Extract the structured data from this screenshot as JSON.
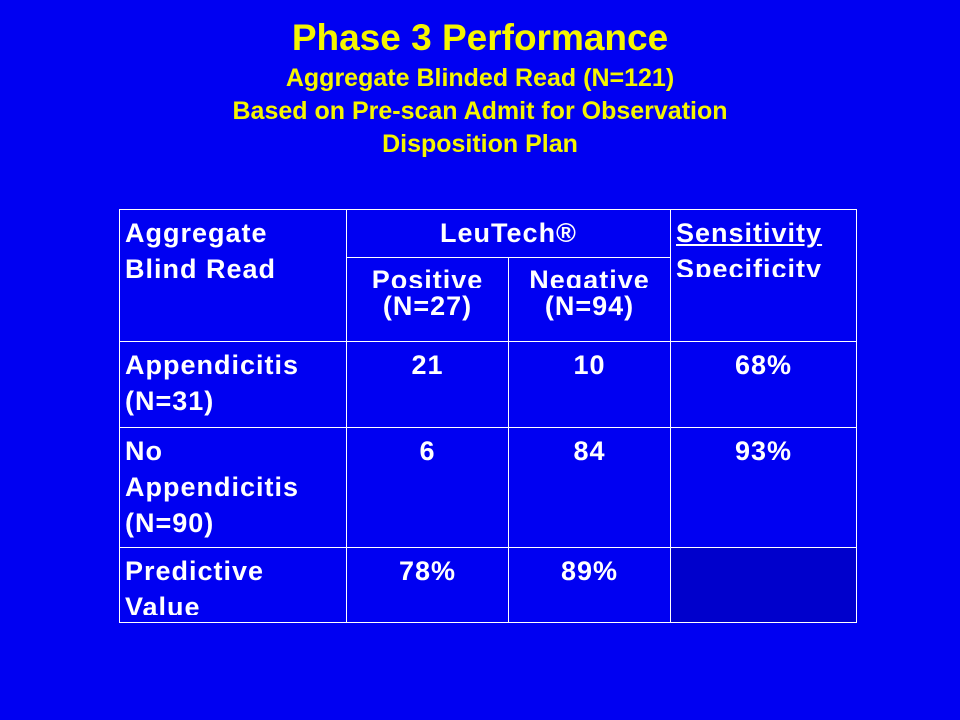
{
  "slide": {
    "title": "Phase 3  Performance",
    "subtitle_lines": [
      "Aggregate Blinded Read (N=121)",
      "Based on Pre-scan Admit for Observation",
      "Disposition Plan"
    ]
  },
  "table": {
    "corner": [
      "Aggregate",
      "Blind Read"
    ],
    "group_header": "LeuTech®",
    "metric_header": [
      "Sensitivity",
      "Specificity"
    ],
    "columns": [
      {
        "label": "Positive",
        "n": "(N=27)"
      },
      {
        "label": "Negative",
        "n": "(N=94)"
      }
    ],
    "rows": [
      {
        "label_lines": [
          "Appendicitis",
          "(N=31)"
        ],
        "positive": "21",
        "negative": "10",
        "metric": "68%"
      },
      {
        "label_lines": [
          "No",
          "Appendicitis",
          "(N=90)"
        ],
        "positive": "6",
        "negative": "84",
        "metric": "93%"
      },
      {
        "label_lines": [
          "Predictive",
          "Value"
        ],
        "positive": "78%",
        "negative": "89%",
        "metric": ""
      }
    ]
  },
  "colors": {
    "background": "#0000f2",
    "title_text": "#f5f500",
    "table_text": "#ffffff",
    "empty_cell": "#0000cc"
  }
}
